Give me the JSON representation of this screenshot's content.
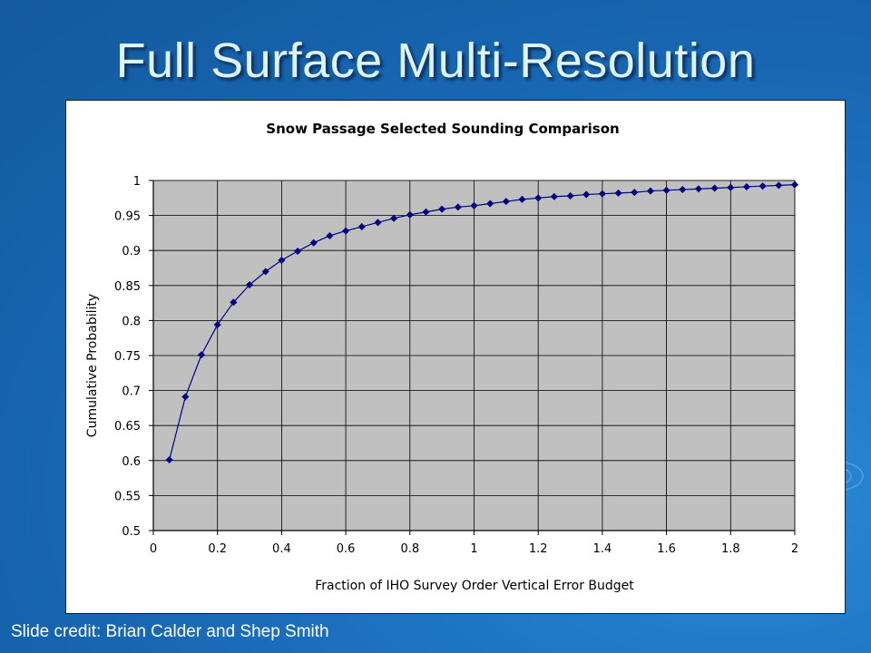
{
  "slide": {
    "title": "Full Surface Multi-Resolution",
    "credit": "Slide credit: Brian Calder and Shep Smith"
  },
  "colors": {
    "background": "#1763ad",
    "plot_area": "#c0c0c0",
    "series": "#000080",
    "title_text": "#dff3ff"
  },
  "chart_data": {
    "type": "line",
    "title": "Snow Passage Selected Sounding Comparison",
    "xlabel": "Fraction of IHO Survey Order Vertical Error Budget",
    "ylabel": "Cumulative Probability",
    "xlim": [
      0,
      2
    ],
    "ylim": [
      0.5,
      1
    ],
    "xticks": [
      "0",
      "0.2",
      "0.4",
      "0.6",
      "0.8",
      "1",
      "1.2",
      "1.4",
      "1.6",
      "1.8",
      "2"
    ],
    "yticks": [
      "0.5",
      "0.55",
      "0.6",
      "0.65",
      "0.7",
      "0.75",
      "0.8",
      "0.85",
      "0.9",
      "0.95",
      "1"
    ],
    "grid": true,
    "marker": "diamond",
    "series": [
      {
        "x": [
          0.05,
          0.1,
          0.15,
          0.2,
          0.25,
          0.3,
          0.35,
          0.4,
          0.45,
          0.5,
          0.55,
          0.6,
          0.65,
          0.7,
          0.75,
          0.8,
          0.85,
          0.9,
          0.95,
          1.0,
          1.05,
          1.1,
          1.15,
          1.2,
          1.25,
          1.3,
          1.35,
          1.4,
          1.45,
          1.5,
          1.55,
          1.6,
          1.65,
          1.7,
          1.75,
          1.8,
          1.85,
          1.9,
          1.95,
          2.0
        ],
        "y": [
          0.601,
          0.691,
          0.751,
          0.794,
          0.826,
          0.851,
          0.87,
          0.886,
          0.899,
          0.911,
          0.921,
          0.928,
          0.934,
          0.94,
          0.946,
          0.951,
          0.955,
          0.959,
          0.962,
          0.964,
          0.967,
          0.97,
          0.973,
          0.975,
          0.977,
          0.978,
          0.98,
          0.981,
          0.982,
          0.983,
          0.985,
          0.986,
          0.987,
          0.988,
          0.989,
          0.99,
          0.991,
          0.992,
          0.993,
          0.994
        ]
      }
    ]
  }
}
